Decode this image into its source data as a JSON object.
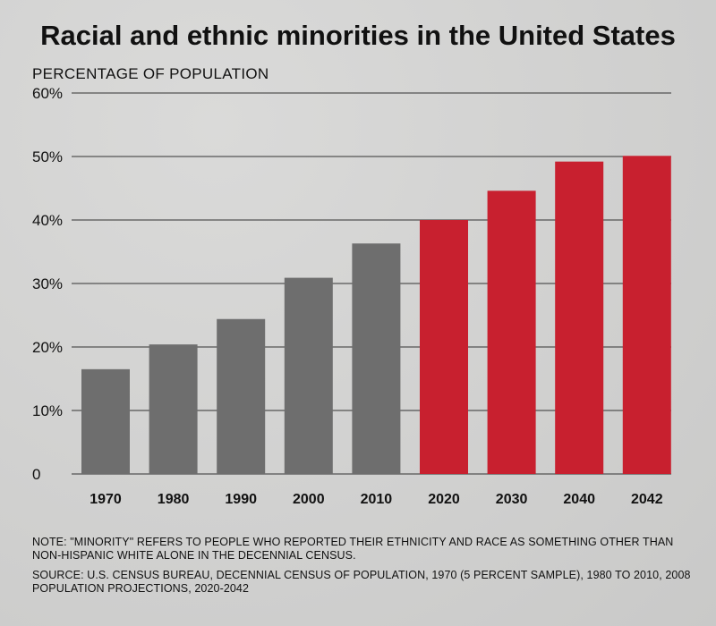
{
  "title": "Racial and ethnic minorities in the United States",
  "subtitle": "PERCENTAGE OF POPULATION",
  "note": "NOTE: \"MINORITY\" REFERS TO PEOPLE WHO REPORTED THEIR ETHNICITY AND RACE AS SOMETHING OTHER THAN NON-HISPANIC WHITE ALONE IN THE DECENNIAL CENSUS.",
  "source": "SOURCE: U.S. CENSUS BUREAU, DECENNIAL CENSUS OF POPULATION, 1970 (5 PERCENT SAMPLE), 1980 TO 2010, 2008 POPULATION PROJECTIONS, 2020-2042",
  "colors": {
    "census": "#6e6e6e",
    "projection": "#c8202f",
    "gridline": "#333333"
  },
  "chart_data": {
    "type": "bar",
    "title": "Racial and ethnic minorities in the United States",
    "ylabel": "PERCENTAGE OF POPULATION",
    "xlabel": "",
    "categories": [
      "1970",
      "1980",
      "1990",
      "2000",
      "2010",
      "2020",
      "2030",
      "2040",
      "2042"
    ],
    "values": [
      16.5,
      20.4,
      24.4,
      30.9,
      36.3,
      40.0,
      44.6,
      49.2,
      50.1
    ],
    "bar_colors": [
      "#6e6e6e",
      "#6e6e6e",
      "#6e6e6e",
      "#6e6e6e",
      "#6e6e6e",
      "#c8202f",
      "#c8202f",
      "#c8202f",
      "#c8202f"
    ],
    "ylim": [
      0,
      60
    ],
    "yticks": [
      0,
      10,
      20,
      30,
      40,
      50,
      60
    ],
    "ytick_labels": [
      "0",
      "10%",
      "20%",
      "30%",
      "40%",
      "50%",
      "60%"
    ],
    "grid": true,
    "legend": "none"
  }
}
